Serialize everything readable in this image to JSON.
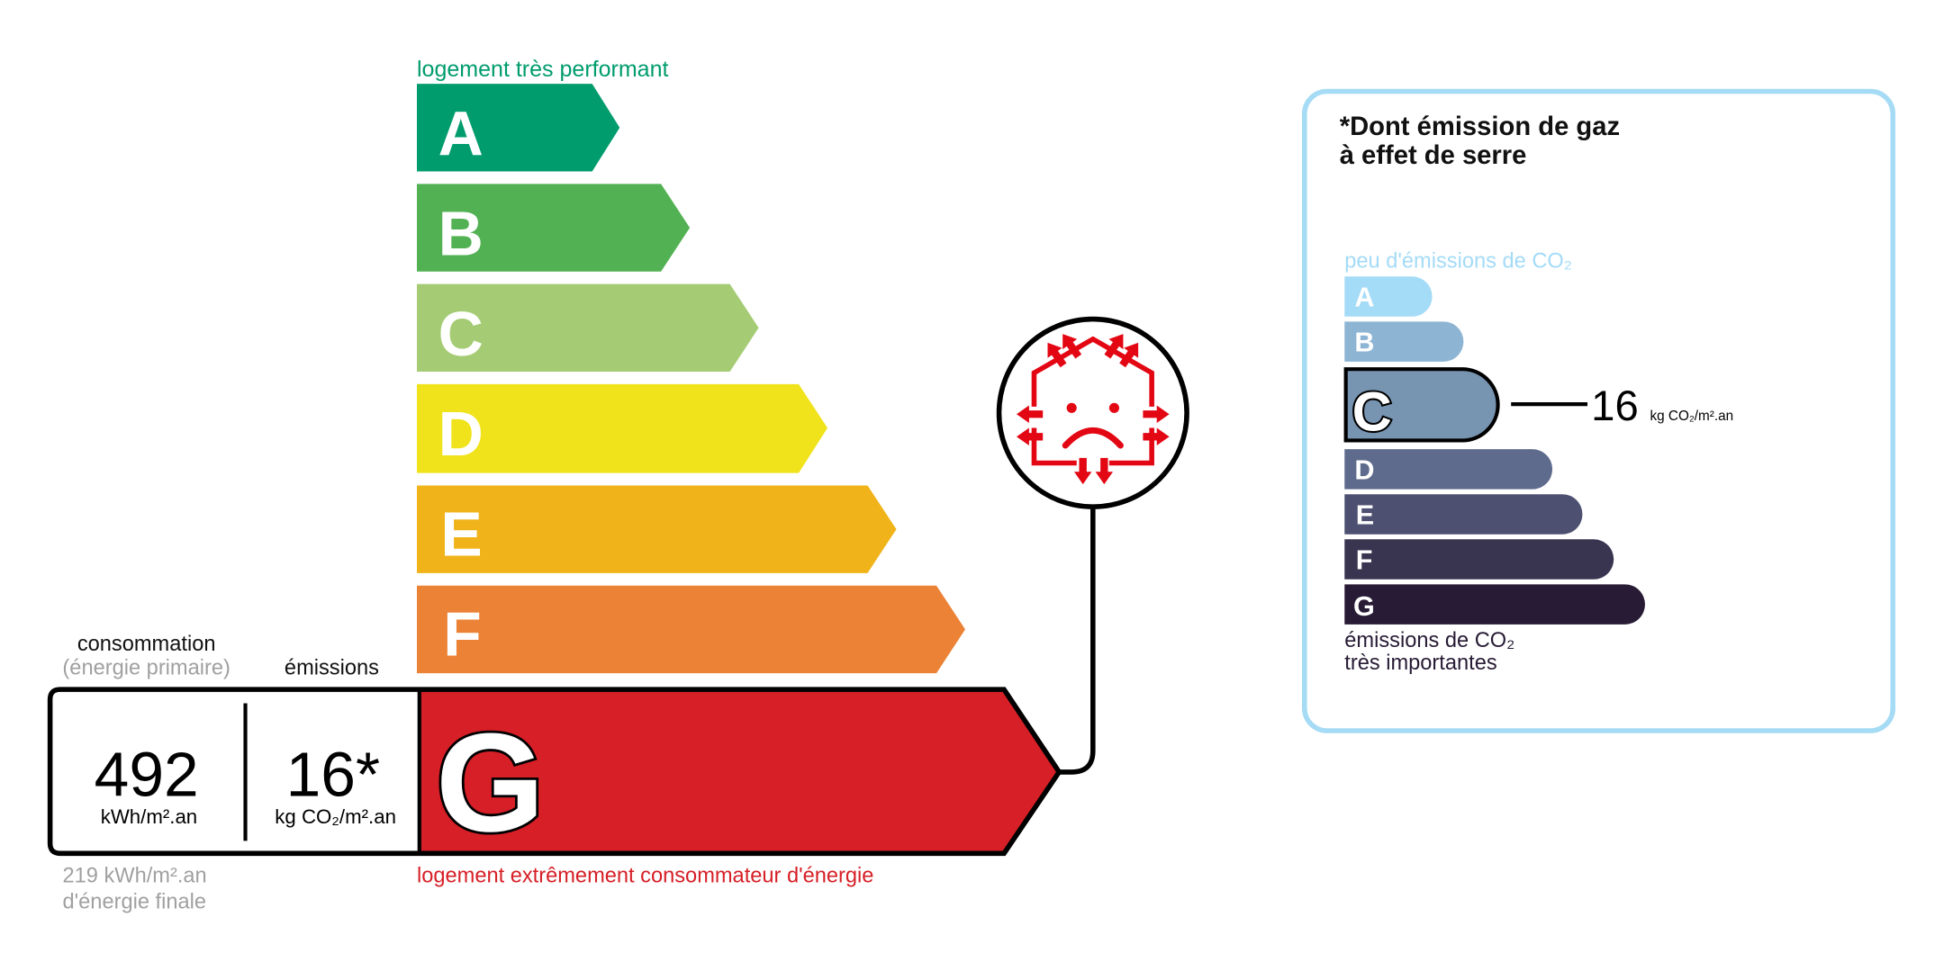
{
  "energy": {
    "top_label": "logement très performant",
    "bottom_label": "logement extrêmement consommateur d'énergie",
    "classes": [
      {
        "letter": "A",
        "color": "#009c6d"
      },
      {
        "letter": "B",
        "color": "#52b153"
      },
      {
        "letter": "C",
        "color": "#a5cc74"
      },
      {
        "letter": "D",
        "color": "#f0e31b"
      },
      {
        "letter": "E",
        "color": "#f0b41a"
      },
      {
        "letter": "F",
        "color": "#eb8236"
      },
      {
        "letter": "G",
        "color": "#d61f26"
      }
    ],
    "active_class": "G",
    "consumption_header": "consommation",
    "consumption_subheader": "(énergie primaire)",
    "emissions_header": "émissions",
    "consumption_value": "492",
    "consumption_unit": "kWh/m².an",
    "emissions_value": "16*",
    "emissions_unit": "kg CO₂/m².an",
    "final_energy_line1": "219 kWh/m².an",
    "final_energy_line2": "d'énergie finale",
    "icon": "poorly-insulated-house-icon"
  },
  "ghg": {
    "title_line1": "*Dont émission de gaz",
    "title_line2": "à effet de serre",
    "top_label": "peu d'émissions de CO₂",
    "bottom_label_line1": "émissions de CO₂",
    "bottom_label_line2": "très importantes",
    "classes": [
      {
        "letter": "A",
        "color": "#a4dbf7"
      },
      {
        "letter": "B",
        "color": "#8db4d3"
      },
      {
        "letter": "C",
        "color": "#7794b1"
      },
      {
        "letter": "D",
        "color": "#5e6b8d"
      },
      {
        "letter": "E",
        "color": "#4d5070"
      },
      {
        "letter": "F",
        "color": "#393551"
      },
      {
        "letter": "G",
        "color": "#281b35"
      }
    ],
    "active_class": "C",
    "value": "16",
    "unit": "kg CO₂/m².an",
    "border_color": "#a5dbf5"
  }
}
